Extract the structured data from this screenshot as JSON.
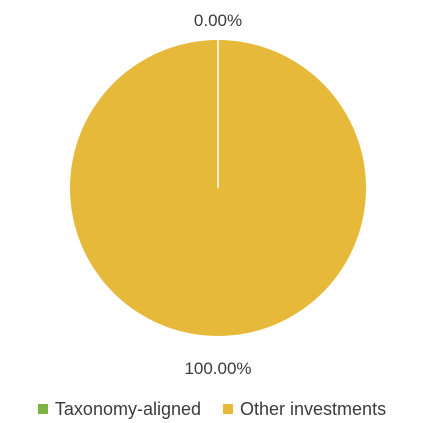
{
  "chart_data": {
    "type": "pie",
    "title": "",
    "legend_position": "bottom",
    "slices": [
      {
        "label": "Taxonomy-aligned",
        "value": 0.0,
        "display": "0.00%",
        "color": "#7cb342"
      },
      {
        "label": "Other investments",
        "value": 100.0,
        "display": "100.00%",
        "color": "#e6b93a"
      }
    ]
  }
}
